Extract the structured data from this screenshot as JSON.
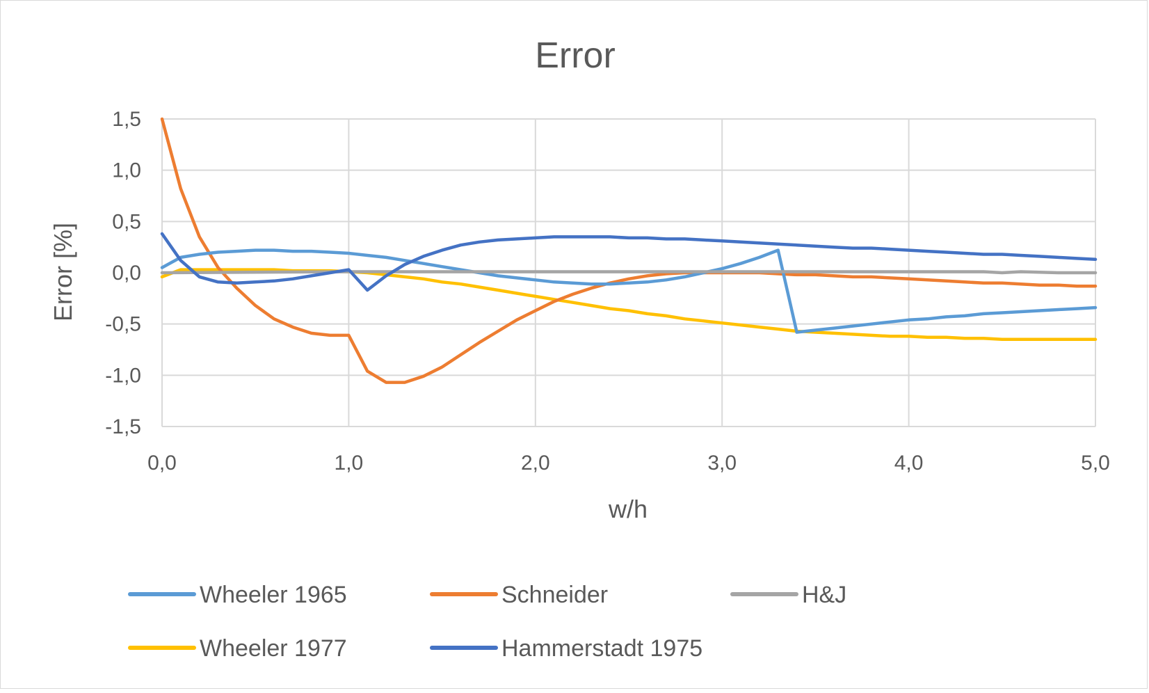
{
  "chart_data": {
    "type": "line",
    "title": "Error",
    "xlabel": "w/h",
    "ylabel": "Error [%]",
    "xlim": [
      0,
      5
    ],
    "ylim": [
      -1.5,
      1.5
    ],
    "x_ticks": [
      0,
      1,
      2,
      3,
      4,
      5
    ],
    "x_tick_labels": [
      "0,0",
      "1,0",
      "2,0",
      "3,0",
      "4,0",
      "5,0"
    ],
    "y_ticks": [
      1.5,
      1.0,
      0.5,
      0.0,
      -0.5,
      -1.0,
      -1.5
    ],
    "y_tick_labels": [
      "1,5",
      "1,0",
      "0,5",
      "0,0",
      "-0,5",
      "-1,0",
      "-1,5"
    ],
    "grid": true,
    "legend_position": "bottom",
    "series": [
      {
        "name": "Wheeler 1965",
        "color": "#5B9BD5",
        "x": [
          0,
          0.1,
          0.2,
          0.3,
          0.4,
          0.5,
          0.6,
          0.7,
          0.8,
          0.9,
          1.0,
          1.1,
          1.2,
          1.3,
          1.4,
          1.5,
          1.6,
          1.7,
          1.8,
          1.9,
          2.0,
          2.1,
          2.2,
          2.3,
          2.4,
          2.5,
          2.6,
          2.7,
          2.8,
          2.9,
          3.0,
          3.1,
          3.2,
          3.3,
          3.4,
          3.5,
          3.6,
          3.7,
          3.8,
          3.9,
          4.0,
          4.1,
          4.2,
          4.3,
          4.4,
          4.5,
          4.6,
          4.7,
          4.8,
          4.9,
          5.0
        ],
        "y": [
          0.05,
          0.15,
          0.18,
          0.2,
          0.21,
          0.22,
          0.22,
          0.21,
          0.21,
          0.2,
          0.19,
          0.17,
          0.15,
          0.12,
          0.09,
          0.06,
          0.03,
          0.0,
          -0.03,
          -0.05,
          -0.07,
          -0.09,
          -0.1,
          -0.11,
          -0.11,
          -0.1,
          -0.09,
          -0.07,
          -0.04,
          0.0,
          0.04,
          0.09,
          0.15,
          0.22,
          -0.58,
          -0.56,
          -0.54,
          -0.52,
          -0.5,
          -0.48,
          -0.46,
          -0.45,
          -0.43,
          -0.42,
          -0.4,
          -0.39,
          -0.38,
          -0.37,
          -0.36,
          -0.35,
          -0.34
        ]
      },
      {
        "name": "Schneider",
        "color": "#ED7D31",
        "x": [
          0,
          0.1,
          0.2,
          0.3,
          0.4,
          0.5,
          0.6,
          0.7,
          0.8,
          0.9,
          1.0,
          1.1,
          1.2,
          1.3,
          1.4,
          1.5,
          1.6,
          1.7,
          1.8,
          1.9,
          2.0,
          2.1,
          2.2,
          2.3,
          2.4,
          2.5,
          2.6,
          2.7,
          2.8,
          2.9,
          3.0,
          3.1,
          3.2,
          3.3,
          3.4,
          3.5,
          3.6,
          3.7,
          3.8,
          3.9,
          4.0,
          4.1,
          4.2,
          4.3,
          4.4,
          4.5,
          4.6,
          4.7,
          4.8,
          4.9,
          5.0
        ],
        "y": [
          1.5,
          0.82,
          0.35,
          0.05,
          -0.15,
          -0.32,
          -0.45,
          -0.53,
          -0.59,
          -0.61,
          -0.61,
          -0.96,
          -1.07,
          -1.07,
          -1.01,
          -0.92,
          -0.8,
          -0.68,
          -0.57,
          -0.46,
          -0.37,
          -0.28,
          -0.21,
          -0.15,
          -0.1,
          -0.06,
          -0.03,
          -0.01,
          0.0,
          0.0,
          0.0,
          0.0,
          0.0,
          -0.01,
          -0.02,
          -0.02,
          -0.03,
          -0.04,
          -0.04,
          -0.05,
          -0.06,
          -0.07,
          -0.08,
          -0.09,
          -0.1,
          -0.1,
          -0.11,
          -0.12,
          -0.12,
          -0.13,
          -0.13
        ]
      },
      {
        "name": "H&J",
        "color": "#A5A5A5",
        "x": [
          0,
          1,
          2,
          3,
          4,
          4.4,
          4.5,
          4.6,
          4.8,
          5.0
        ],
        "y": [
          0.0,
          0.01,
          0.01,
          0.01,
          0.01,
          0.01,
          0.0,
          0.01,
          0.0,
          0.0
        ]
      },
      {
        "name": "Wheeler 1977",
        "color": "#FFC000",
        "x": [
          0,
          0.1,
          0.2,
          0.3,
          0.4,
          0.5,
          0.6,
          0.7,
          0.8,
          0.9,
          1.0,
          1.1,
          1.2,
          1.3,
          1.4,
          1.5,
          1.6,
          1.7,
          1.8,
          1.9,
          2.0,
          2.1,
          2.2,
          2.3,
          2.4,
          2.5,
          2.6,
          2.7,
          2.8,
          2.9,
          3.0,
          3.1,
          3.2,
          3.3,
          3.4,
          3.5,
          3.6,
          3.7,
          3.8,
          3.9,
          4.0,
          4.1,
          4.2,
          4.3,
          4.4,
          4.5,
          4.6,
          4.7,
          4.8,
          4.9,
          5.0
        ],
        "y": [
          -0.04,
          0.03,
          0.03,
          0.03,
          0.03,
          0.03,
          0.03,
          0.02,
          0.02,
          0.02,
          0.01,
          0.0,
          -0.02,
          -0.04,
          -0.06,
          -0.09,
          -0.11,
          -0.14,
          -0.17,
          -0.2,
          -0.23,
          -0.26,
          -0.29,
          -0.32,
          -0.35,
          -0.37,
          -0.4,
          -0.42,
          -0.45,
          -0.47,
          -0.49,
          -0.51,
          -0.53,
          -0.55,
          -0.57,
          -0.58,
          -0.59,
          -0.6,
          -0.61,
          -0.62,
          -0.62,
          -0.63,
          -0.63,
          -0.64,
          -0.64,
          -0.65,
          -0.65,
          -0.65,
          -0.65,
          -0.65,
          -0.65
        ]
      },
      {
        "name": "Hammerstadt 1975",
        "color": "#4472C4",
        "x": [
          0,
          0.1,
          0.2,
          0.3,
          0.4,
          0.5,
          0.6,
          0.7,
          0.8,
          0.9,
          1.0,
          1.1,
          1.2,
          1.3,
          1.4,
          1.5,
          1.6,
          1.7,
          1.8,
          1.9,
          2.0,
          2.1,
          2.2,
          2.3,
          2.4,
          2.5,
          2.6,
          2.7,
          2.8,
          2.9,
          3.0,
          3.1,
          3.2,
          3.3,
          3.4,
          3.5,
          3.6,
          3.7,
          3.8,
          3.9,
          4.0,
          4.1,
          4.2,
          4.3,
          4.4,
          4.5,
          4.6,
          4.7,
          4.8,
          4.9,
          5.0
        ],
        "y": [
          0.38,
          0.12,
          -0.04,
          -0.09,
          -0.1,
          -0.09,
          -0.08,
          -0.06,
          -0.03,
          0.0,
          0.03,
          -0.17,
          -0.03,
          0.08,
          0.16,
          0.22,
          0.27,
          0.3,
          0.32,
          0.33,
          0.34,
          0.35,
          0.35,
          0.35,
          0.35,
          0.34,
          0.34,
          0.33,
          0.33,
          0.32,
          0.31,
          0.3,
          0.29,
          0.28,
          0.27,
          0.26,
          0.25,
          0.24,
          0.24,
          0.23,
          0.22,
          0.21,
          0.2,
          0.19,
          0.18,
          0.18,
          0.17,
          0.16,
          0.15,
          0.14,
          0.13
        ]
      }
    ]
  }
}
